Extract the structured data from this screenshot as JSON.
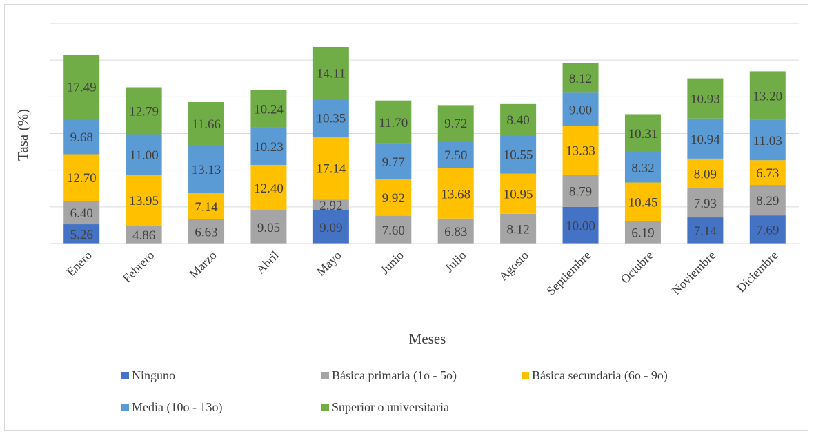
{
  "chart_data": {
    "type": "bar",
    "stacked": true,
    "title": "",
    "xlabel": "Meses",
    "ylabel": "Tasa (%)",
    "ylim": [
      0,
      60
    ],
    "grid": true,
    "legend_position": "bottom",
    "categories": [
      "Enero",
      "Febrero",
      "Marzo",
      "Abril",
      "Mayo",
      "Junio",
      "Julio",
      "Agosto",
      "Septiembre",
      "Octubre",
      "Noviembre",
      "Diciembre"
    ],
    "series": [
      {
        "name": "Ninguno",
        "color": "#4472c4",
        "values": [
          5.26,
          null,
          null,
          null,
          9.09,
          null,
          null,
          null,
          10.0,
          null,
          7.14,
          7.69
        ],
        "labels": [
          "5.26",
          "",
          "",
          "",
          "9.09",
          "",
          "",
          "",
          "10.00",
          "",
          "7.14",
          "7.69"
        ]
      },
      {
        "name": "Básica primaria (1o - 5o)",
        "color": "#a5a5a5",
        "values": [
          6.4,
          4.86,
          6.63,
          9.05,
          2.92,
          7.6,
          6.83,
          8.12,
          8.79,
          6.19,
          7.93,
          8.29
        ],
        "labels": [
          "6.40",
          "4.86",
          "6.63",
          "9.05",
          "2.92",
          "7.60",
          "6.83",
          "8.12",
          "8.79",
          "6.19",
          "7.93",
          "8.29"
        ]
      },
      {
        "name": "Básica secundaria (6o - 9o)",
        "color": "#ffc000",
        "values": [
          12.7,
          13.95,
          7.14,
          12.4,
          17.14,
          9.92,
          13.68,
          10.95,
          13.33,
          10.45,
          8.09,
          6.73
        ],
        "labels": [
          "12.70",
          "13.95",
          "7.14",
          "12.40",
          "17.14",
          "9.92",
          "13.68",
          "10.95",
          "13.33",
          "10.45",
          "8.09",
          "6.73"
        ]
      },
      {
        "name": "Media (10o - 13o)",
        "color": "#5b9bd5",
        "values": [
          9.68,
          11.0,
          13.13,
          10.23,
          10.35,
          9.77,
          7.5,
          10.55,
          9.0,
          8.32,
          10.94,
          11.03
        ],
        "labels": [
          "9.68",
          "11.00",
          "13.13",
          "10.23",
          "10.35",
          "9.77",
          "7.50",
          "10.55",
          "9.00",
          "8.32",
          "10.94",
          "11.03"
        ]
      },
      {
        "name": "Superior o universitaria",
        "color": "#70ad47",
        "values": [
          17.49,
          12.79,
          11.66,
          10.24,
          14.11,
          11.7,
          9.72,
          8.4,
          8.12,
          10.31,
          10.93,
          13.2
        ],
        "labels": [
          "17.49",
          "12.79",
          "11.66",
          "10.24",
          "14.11",
          "11.70",
          "9.72",
          "8.40",
          "8.12",
          "10.31",
          "10.93",
          "13.20"
        ]
      }
    ]
  }
}
